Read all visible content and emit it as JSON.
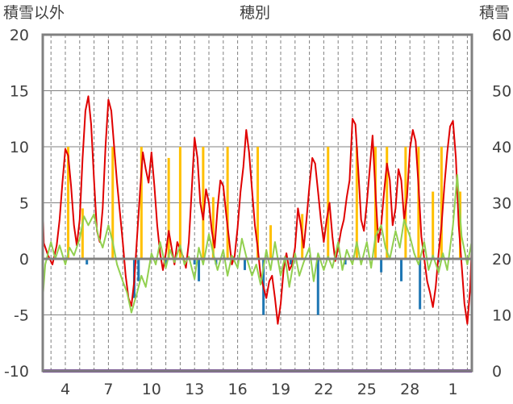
{
  "chart_data": {
    "type": "line",
    "title": "穂別",
    "left_axis_label": "積雪以外",
    "right_axis_label": "積雪",
    "y_left": {
      "min": -10,
      "max": 20,
      "ticks": [
        -10,
        -5,
        0,
        5,
        10,
        15,
        20
      ]
    },
    "y_right": {
      "min": 0,
      "max": 60,
      "ticks": [
        0,
        10,
        20,
        30,
        40,
        50,
        60
      ]
    },
    "x_day_range": [
      2,
      32
    ],
    "x_ticks": [
      {
        "day": 4,
        "label": "4"
      },
      {
        "day": 7,
        "label": "7"
      },
      {
        "day": 10,
        "label": "10"
      },
      {
        "day": 13,
        "label": "13"
      },
      {
        "day": 16,
        "label": "16"
      },
      {
        "day": 19,
        "label": "19"
      },
      {
        "day": 22,
        "label": "22"
      },
      {
        "day": 25,
        "label": "25"
      },
      {
        "day": 28,
        "label": "28"
      },
      {
        "day": 31,
        "label": "1"
      }
    ],
    "grid": true,
    "colors": {
      "max_temp": "#e00000",
      "min_temp": "#92d050",
      "precip": "#ffc000",
      "negative_bars": "#1f77b4",
      "snow_depth": "#7030a0",
      "grid": "#808080",
      "frame": "#808080"
    },
    "series": [
      {
        "color_key": "max_temp",
        "axis": "left",
        "points": [
          [
            2.0,
            5.8
          ],
          [
            2.2,
            5.1
          ],
          [
            2.4,
            4.7
          ],
          [
            2.5,
            1.4
          ],
          [
            2.8,
            0.3
          ],
          [
            3.1,
            -0.5
          ],
          [
            3.4,
            1.2
          ],
          [
            3.6,
            3.5
          ],
          [
            3.8,
            6.8
          ],
          [
            4.0,
            9.8
          ],
          [
            4.2,
            9.2
          ],
          [
            4.4,
            6.5
          ],
          [
            4.6,
            3.0
          ],
          [
            4.8,
            1.2
          ],
          [
            5.0,
            3.5
          ],
          [
            5.2,
            9.0
          ],
          [
            5.4,
            13.2
          ],
          [
            5.6,
            14.5
          ],
          [
            5.8,
            12.0
          ],
          [
            6.0,
            7.0
          ],
          [
            6.2,
            2.5
          ],
          [
            6.4,
            1.5
          ],
          [
            6.6,
            4.5
          ],
          [
            6.8,
            10.0
          ],
          [
            7.0,
            14.2
          ],
          [
            7.2,
            13.2
          ],
          [
            7.4,
            10.0
          ],
          [
            7.6,
            6.8
          ],
          [
            7.8,
            4.2
          ],
          [
            8.0,
            1.5
          ],
          [
            8.2,
            -1.5
          ],
          [
            8.4,
            -3.5
          ],
          [
            8.6,
            -4.2
          ],
          [
            8.8,
            -2.0
          ],
          [
            9.0,
            2.0
          ],
          [
            9.2,
            6.0
          ],
          [
            9.4,
            9.5
          ],
          [
            9.6,
            8.0
          ],
          [
            9.8,
            6.8
          ],
          [
            10.0,
            9.5
          ],
          [
            10.2,
            6.5
          ],
          [
            10.4,
            3.0
          ],
          [
            10.6,
            0.5
          ],
          [
            10.8,
            -1.0
          ],
          [
            11.0,
            0.5
          ],
          [
            11.2,
            2.5
          ],
          [
            11.4,
            1.0
          ],
          [
            11.6,
            -0.5
          ],
          [
            11.8,
            1.5
          ],
          [
            12.0,
            0.8
          ],
          [
            12.2,
            0.2
          ],
          [
            12.4,
            -0.8
          ],
          [
            12.6,
            1.5
          ],
          [
            12.8,
            6.0
          ],
          [
            13.0,
            10.8
          ],
          [
            13.2,
            9.0
          ],
          [
            13.4,
            5.0
          ],
          [
            13.6,
            3.5
          ],
          [
            13.8,
            6.2
          ],
          [
            14.0,
            5.0
          ],
          [
            14.2,
            2.5
          ],
          [
            14.4,
            1.0
          ],
          [
            14.6,
            4.5
          ],
          [
            14.8,
            7.0
          ],
          [
            15.0,
            6.5
          ],
          [
            15.2,
            4.0
          ],
          [
            15.4,
            1.8
          ],
          [
            15.6,
            -0.5
          ],
          [
            15.8,
            0.3
          ],
          [
            16.0,
            2.8
          ],
          [
            16.2,
            6.0
          ],
          [
            16.4,
            8.2
          ],
          [
            16.6,
            11.5
          ],
          [
            16.8,
            9.5
          ],
          [
            17.0,
            6.2
          ],
          [
            17.2,
            3.0
          ],
          [
            17.4,
            1.0
          ],
          [
            17.6,
            -1.5
          ],
          [
            17.8,
            -2.5
          ],
          [
            18.0,
            -3.5
          ],
          [
            18.2,
            -2.0
          ],
          [
            18.4,
            -1.5
          ],
          [
            18.6,
            -3.5
          ],
          [
            18.8,
            -5.8
          ],
          [
            19.0,
            -4.0
          ],
          [
            19.2,
            -1.0
          ],
          [
            19.4,
            0.5
          ],
          [
            19.6,
            -1.0
          ],
          [
            19.8,
            -0.5
          ],
          [
            20.0,
            1.0
          ],
          [
            20.2,
            4.5
          ],
          [
            20.4,
            3.0
          ],
          [
            20.6,
            1.0
          ],
          [
            20.8,
            3.5
          ],
          [
            21.0,
            6.5
          ],
          [
            21.2,
            9.0
          ],
          [
            21.4,
            8.5
          ],
          [
            21.6,
            6.0
          ],
          [
            21.8,
            3.5
          ],
          [
            22.0,
            1.5
          ],
          [
            22.2,
            3.5
          ],
          [
            22.4,
            5.0
          ],
          [
            22.6,
            2.0
          ],
          [
            22.8,
            -0.2
          ],
          [
            23.0,
            1.0
          ],
          [
            23.2,
            2.5
          ],
          [
            23.4,
            3.5
          ],
          [
            23.6,
            5.5
          ],
          [
            23.8,
            7.0
          ],
          [
            24.0,
            12.5
          ],
          [
            24.2,
            12.0
          ],
          [
            24.4,
            8.0
          ],
          [
            24.6,
            3.5
          ],
          [
            24.8,
            2.5
          ],
          [
            25.0,
            5.0
          ],
          [
            25.2,
            8.0
          ],
          [
            25.4,
            11.0
          ],
          [
            25.6,
            6.0
          ],
          [
            25.8,
            1.5
          ],
          [
            26.0,
            3.0
          ],
          [
            26.2,
            6.0
          ],
          [
            26.4,
            8.5
          ],
          [
            26.6,
            7.0
          ],
          [
            26.8,
            3.0
          ],
          [
            27.0,
            4.5
          ],
          [
            27.2,
            8.0
          ],
          [
            27.4,
            7.0
          ],
          [
            27.6,
            3.5
          ],
          [
            27.8,
            5.5
          ],
          [
            28.0,
            9.8
          ],
          [
            28.2,
            11.5
          ],
          [
            28.4,
            10.5
          ],
          [
            28.6,
            6.5
          ],
          [
            28.8,
            2.0
          ],
          [
            29.0,
            0.0
          ],
          [
            29.2,
            -2.0
          ],
          [
            29.4,
            -3.0
          ],
          [
            29.6,
            -4.3
          ],
          [
            29.8,
            -2.5
          ],
          [
            30.0,
            0.5
          ],
          [
            30.2,
            3.0
          ],
          [
            30.4,
            6.5
          ],
          [
            30.6,
            9.5
          ],
          [
            30.8,
            11.8
          ],
          [
            31.0,
            12.3
          ],
          [
            31.2,
            9.0
          ],
          [
            31.4,
            3.0
          ],
          [
            31.6,
            -0.5
          ],
          [
            31.8,
            -4.0
          ],
          [
            32.0,
            -5.8
          ],
          [
            32.2,
            -2.5
          ],
          [
            32.4,
            1.5
          ],
          [
            32.6,
            4.0
          ],
          [
            32.8,
            5.2
          ],
          [
            33.0,
            2.0
          ]
        ]
      },
      {
        "color_key": "min_temp",
        "axis": "left",
        "points": [
          [
            2.0,
            -1.5
          ],
          [
            2.3,
            -3.5
          ],
          [
            2.6,
            -0.5
          ],
          [
            3.0,
            1.5
          ],
          [
            3.3,
            0.0
          ],
          [
            3.6,
            1.2
          ],
          [
            4.0,
            -0.5
          ],
          [
            4.3,
            1.0
          ],
          [
            4.6,
            0.3
          ],
          [
            5.0,
            1.8
          ],
          [
            5.3,
            3.8
          ],
          [
            5.6,
            3.0
          ],
          [
            6.0,
            4.0
          ],
          [
            6.3,
            2.0
          ],
          [
            6.6,
            1.0
          ],
          [
            7.0,
            3.0
          ],
          [
            7.3,
            1.5
          ],
          [
            7.6,
            -0.5
          ],
          [
            8.0,
            -2.0
          ],
          [
            8.3,
            -3.0
          ],
          [
            8.6,
            -4.8
          ],
          [
            9.0,
            -3.0
          ],
          [
            9.3,
            -1.5
          ],
          [
            9.6,
            -2.5
          ],
          [
            10.0,
            0.5
          ],
          [
            10.3,
            -0.5
          ],
          [
            10.6,
            1.5
          ],
          [
            11.0,
            -0.8
          ],
          [
            11.3,
            0.8
          ],
          [
            11.6,
            -0.3
          ],
          [
            12.0,
            1.2
          ],
          [
            12.3,
            -0.5
          ],
          [
            12.6,
            0.2
          ],
          [
            13.0,
            -1.8
          ],
          [
            13.3,
            1.0
          ],
          [
            13.6,
            -0.5
          ],
          [
            14.0,
            2.2
          ],
          [
            14.3,
            0.5
          ],
          [
            14.6,
            -1.0
          ],
          [
            15.0,
            0.8
          ],
          [
            15.3,
            -1.5
          ],
          [
            15.6,
            0.3
          ],
          [
            16.0,
            -0.8
          ],
          [
            16.3,
            1.8
          ],
          [
            16.6,
            0.2
          ],
          [
            17.0,
            -1.5
          ],
          [
            17.3,
            -0.5
          ],
          [
            17.6,
            -2.3
          ],
          [
            18.0,
            0.8
          ],
          [
            18.3,
            -1.0
          ],
          [
            18.6,
            1.5
          ],
          [
            19.0,
            -1.5
          ],
          [
            19.3,
            0.2
          ],
          [
            19.6,
            -2.5
          ],
          [
            20.0,
            0.5
          ],
          [
            20.3,
            -1.5
          ],
          [
            20.6,
            -0.3
          ],
          [
            21.0,
            1.0
          ],
          [
            21.3,
            -2.0
          ],
          [
            21.6,
            0.5
          ],
          [
            22.0,
            -1.0
          ],
          [
            22.3,
            0.2
          ],
          [
            22.6,
            -0.8
          ],
          [
            23.0,
            1.5
          ],
          [
            23.3,
            -1.0
          ],
          [
            23.6,
            0.8
          ],
          [
            24.0,
            -0.5
          ],
          [
            24.3,
            1.5
          ],
          [
            24.6,
            -0.5
          ],
          [
            25.0,
            1.5
          ],
          [
            25.3,
            -0.8
          ],
          [
            25.6,
            2.0
          ],
          [
            26.0,
            3.0
          ],
          [
            26.3,
            1.0
          ],
          [
            26.6,
            0.0
          ],
          [
            27.0,
            2.5
          ],
          [
            27.3,
            1.0
          ],
          [
            27.6,
            3.5
          ],
          [
            28.0,
            2.0
          ],
          [
            28.3,
            0.5
          ],
          [
            28.6,
            -0.5
          ],
          [
            29.0,
            1.5
          ],
          [
            29.3,
            -1.0
          ],
          [
            29.6,
            0.3
          ],
          [
            30.0,
            -1.2
          ],
          [
            30.3,
            0.5
          ],
          [
            30.6,
            -1.0
          ],
          [
            31.0,
            3.0
          ],
          [
            31.3,
            7.5
          ],
          [
            31.6,
            2.0
          ],
          [
            32.0,
            -0.5
          ],
          [
            32.3,
            1.5
          ],
          [
            32.6,
            -1.2
          ],
          [
            33.0,
            -2.0
          ]
        ]
      },
      {
        "color_key": "snow_depth",
        "axis": "right",
        "points": [
          [
            2.0,
            0
          ],
          [
            33.0,
            0
          ]
        ]
      }
    ],
    "bars": [
      {
        "color_key": "precip",
        "axis": "left",
        "values": [
          [
            4.2,
            10.0
          ],
          [
            5.2,
            4.5
          ],
          [
            7.3,
            10.0
          ],
          [
            9.3,
            10.0
          ],
          [
            11.2,
            9.0
          ],
          [
            12.0,
            10.0
          ],
          [
            13.6,
            10.0
          ],
          [
            14.3,
            5.5
          ],
          [
            15.3,
            10.0
          ],
          [
            17.4,
            10.0
          ],
          [
            18.3,
            3.0
          ],
          [
            20.5,
            4.0
          ],
          [
            22.3,
            10.0
          ],
          [
            24.3,
            10.0
          ],
          [
            25.6,
            10.0
          ],
          [
            26.4,
            10.0
          ],
          [
            27.7,
            10.0
          ],
          [
            28.6,
            10.0
          ],
          [
            29.6,
            6.0
          ],
          [
            30.2,
            10.0
          ],
          [
            31.5,
            6.0
          ],
          [
            32.6,
            10.0
          ]
        ]
      },
      {
        "color_key": "negative_bars",
        "axis": "left",
        "values": [
          [
            5.5,
            -0.5
          ],
          [
            8.8,
            -3.5
          ],
          [
            9.1,
            -2.0
          ],
          [
            11.0,
            -0.5
          ],
          [
            13.0,
            -0.5
          ],
          [
            13.3,
            -2.0
          ],
          [
            14.5,
            -0.5
          ],
          [
            16.5,
            -1.0
          ],
          [
            17.8,
            -5.0
          ],
          [
            19.7,
            -0.5
          ],
          [
            21.6,
            -5.0
          ],
          [
            23.5,
            -0.5
          ],
          [
            26.0,
            -1.2
          ],
          [
            27.4,
            -2.0
          ],
          [
            28.7,
            -4.5
          ],
          [
            30.0,
            -0.3
          ],
          [
            32.6,
            -0.5
          ],
          [
            33.0,
            -4.5
          ]
        ]
      }
    ]
  }
}
